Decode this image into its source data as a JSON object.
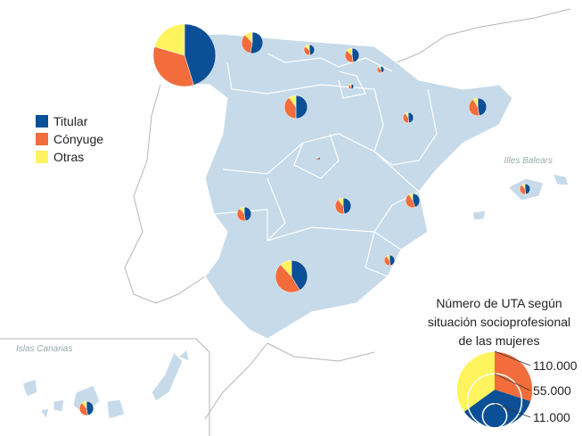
{
  "legend": [
    {
      "label": "Titular",
      "color": "#0b4f96"
    },
    {
      "label": "Cónyuge",
      "color": "#f26d3b"
    },
    {
      "label": "Otras",
      "color": "#fff35e"
    }
  ],
  "places": {
    "baleares": "Illes Balears",
    "canarias": "Islas Canarias"
  },
  "size_legend": {
    "title": [
      "Número de UTA según",
      "situación socioprofesional",
      "de las mujeres"
    ],
    "values": [
      {
        "value": 110000,
        "label": "110.000"
      },
      {
        "value": 55000,
        "label": "55.000"
      },
      {
        "value": 11000,
        "label": "11.000"
      }
    ]
  },
  "pies": [
    {
      "values": [
        33000,
        25000,
        15000
      ]
    },
    {
      "values": [
        4500,
        3000,
        1000
      ]
    },
    {
      "values": [
        1000,
        800,
        300
      ]
    },
    {
      "values": [
        1800,
        1500,
        500
      ]
    },
    {
      "values": [
        400,
        400,
        100
      ]
    },
    {
      "values": [
        250,
        200,
        50
      ]
    },
    {
      "values": [
        5000,
        4000,
        1000
      ]
    },
    {
      "values": [
        1000,
        900,
        200
      ]
    },
    {
      "values": [
        2800,
        2600,
        500
      ]
    },
    {
      "values": [
        110,
        100,
        30
      ]
    },
    {
      "values": [
        1800,
        1600,
        400
      ]
    },
    {
      "values": [
        2300,
        2000,
        500
      ]
    },
    {
      "values": [
        1700,
        1800,
        300
      ]
    },
    {
      "values": [
        1000,
        900,
        200
      ]
    },
    {
      "values": [
        1000,
        900,
        200
      ]
    },
    {
      "values": [
        8000,
        9000,
        2300
      ]
    },
    {
      "values": [
        1800,
        1600,
        400
      ]
    }
  ]
}
